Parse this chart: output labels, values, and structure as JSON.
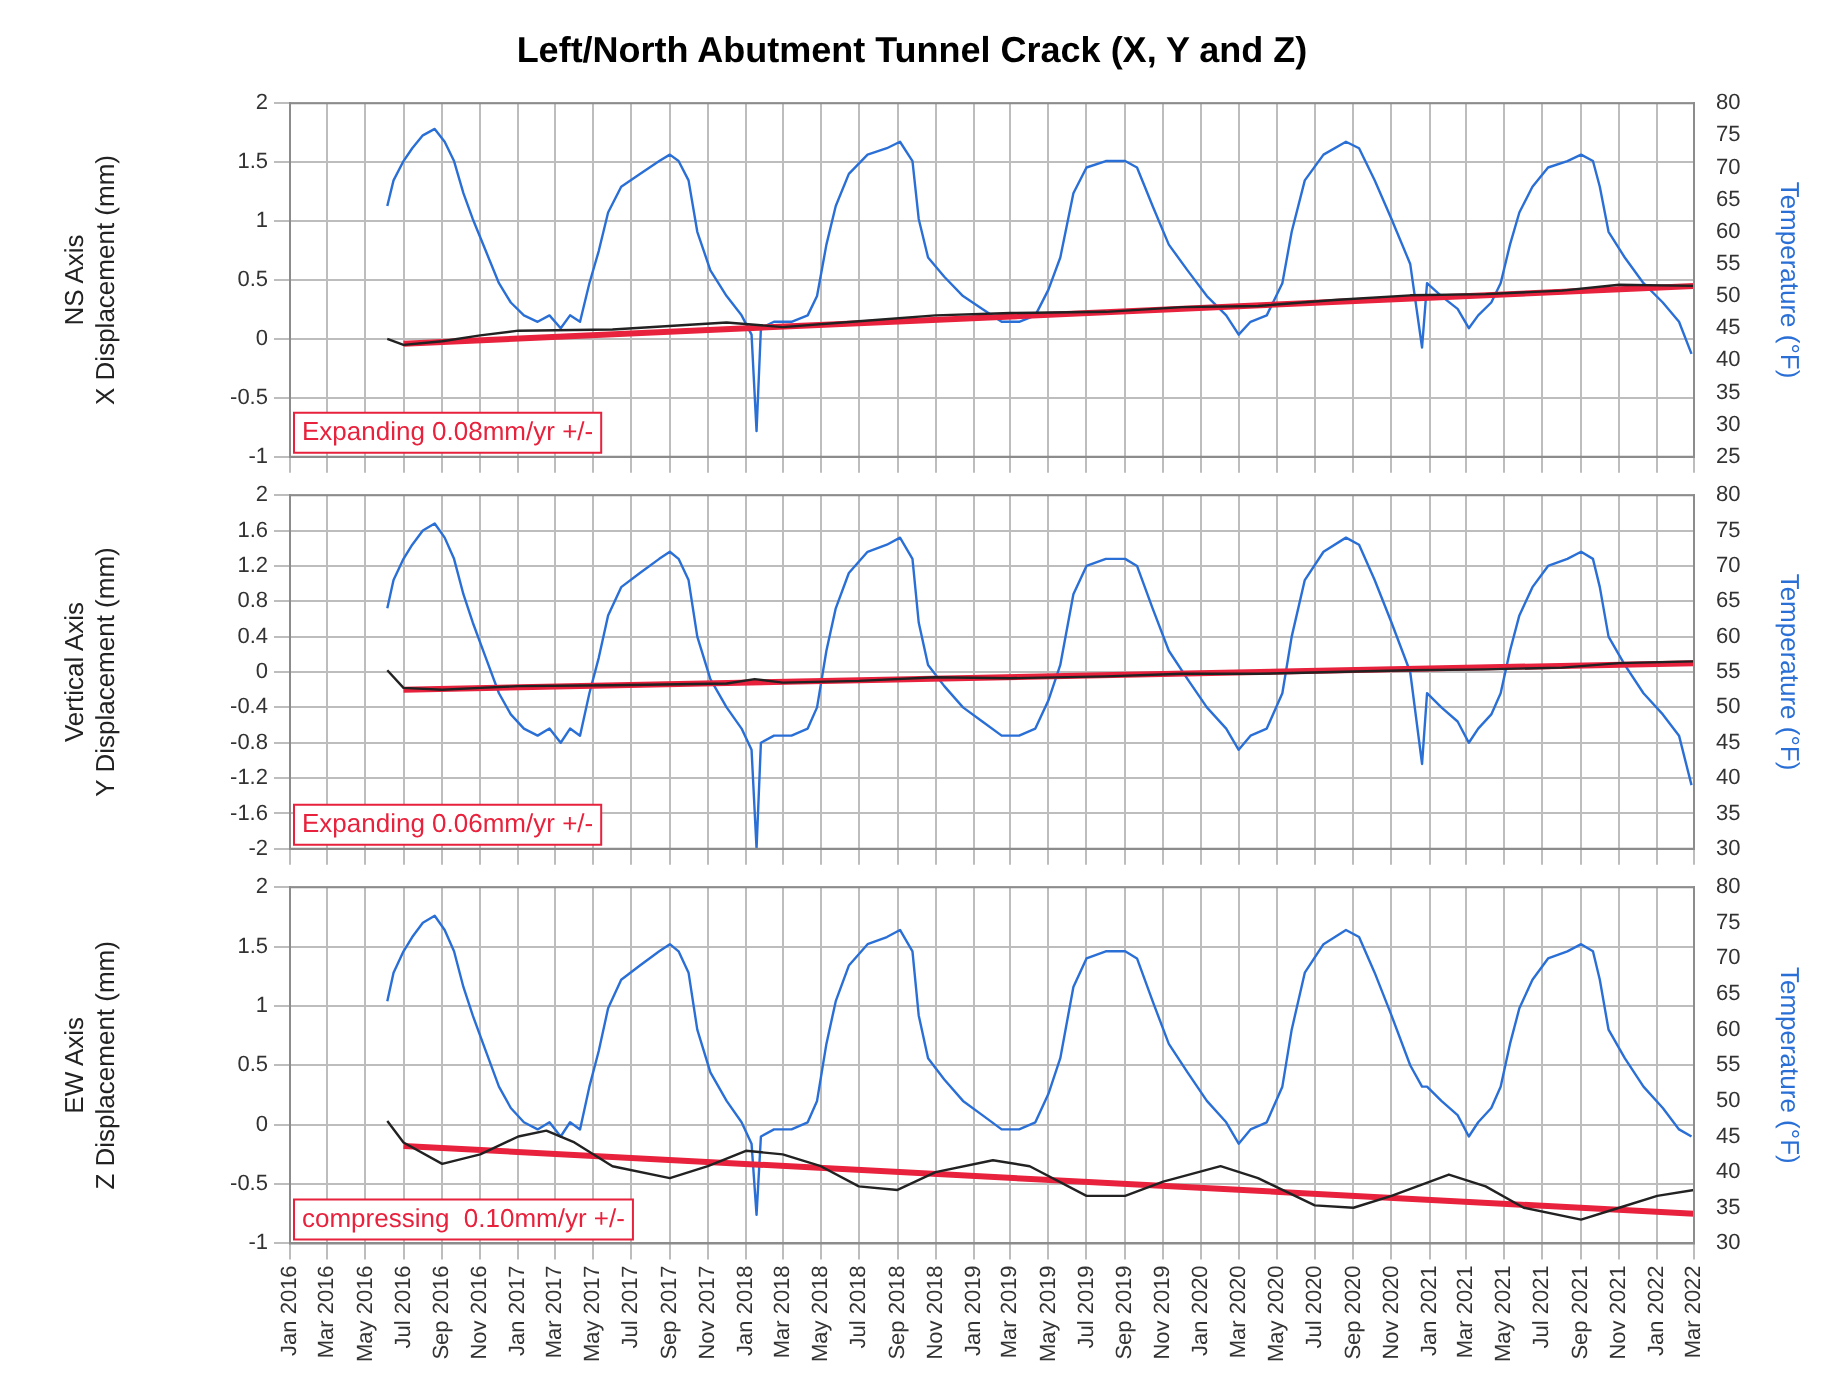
{
  "chart_data": [
    {
      "type": "line",
      "title": "Left/North Abutment Tunnel Crack (X, Y and Z)",
      "ylabel": "NS Axis\nX Displacement (mm)",
      "y2label": "Temperature (°F)",
      "tick_labels": "y",
      "grid": true,
      "legend": false,
      "xlim": [
        "2016-01",
        "2022-03"
      ],
      "xticks": [
        {
          "value": "2016-01",
          "label": null
        },
        {
          "value": "2016-03",
          "label": null
        },
        {
          "value": "2016-05",
          "label": null
        },
        {
          "value": "2016-07",
          "label": null
        },
        {
          "value": "2016-09",
          "label": null
        },
        {
          "value": "2016-11",
          "label": null
        },
        {
          "value": "2017-01",
          "label": null
        },
        {
          "value": "2017-03",
          "label": null
        },
        {
          "value": "2017-05",
          "label": null
        },
        {
          "value": "2017-07",
          "label": null
        },
        {
          "value": "2017-09",
          "label": null
        },
        {
          "value": "2017-11",
          "label": null
        },
        {
          "value": "2018-01",
          "label": null
        },
        {
          "value": "2018-03",
          "label": null
        },
        {
          "value": "2018-05",
          "label": null
        },
        {
          "value": "2018-07",
          "label": null
        },
        {
          "value": "2018-09",
          "label": null
        },
        {
          "value": "2018-11",
          "label": null
        },
        {
          "value": "2019-01",
          "label": null
        },
        {
          "value": "2019-03",
          "label": null
        },
        {
          "value": "2019-05",
          "label": null
        },
        {
          "value": "2019-07",
          "label": null
        },
        {
          "value": "2019-09",
          "label": null
        },
        {
          "value": "2019-11",
          "label": null
        },
        {
          "value": "2020-01",
          "label": null
        },
        {
          "value": "2020-03",
          "label": null
        },
        {
          "value": "2020-05",
          "label": null
        },
        {
          "value": "2020-07",
          "label": null
        },
        {
          "value": "2020-09",
          "label": null
        },
        {
          "value": "2020-11",
          "label": null
        },
        {
          "value": "2021-01",
          "label": null
        },
        {
          "value": "2021-03",
          "label": null
        },
        {
          "value": "2021-05",
          "label": null
        },
        {
          "value": "2021-07",
          "label": null
        },
        {
          "value": "2021-09",
          "label": null
        },
        {
          "value": "2021-11",
          "label": null
        },
        {
          "value": "2022-01",
          "label": null
        },
        {
          "value": "2022-03",
          "label": null
        }
      ],
      "ylim": [
        -1,
        2
      ],
      "yticks": [
        -1,
        -0.5,
        0,
        0.5,
        1,
        1.5,
        2
      ],
      "y2lim": [
        25,
        80
      ],
      "y2ticks": [
        25,
        30,
        35,
        40,
        45,
        50,
        55,
        60,
        65,
        70,
        75,
        80
      ],
      "annotations": [
        "Expanding 0.08mm/yr +/-"
      ],
      "series": [
        {
          "type": "line",
          "axis": "y2",
          "color": "#2a6fd6",
          "x": [
            "2016-06-05",
            "2016-06-15",
            "2016-07-01",
            "2016-07-15",
            "2016-08-01",
            "2016-08-20",
            "2016-09-05",
            "2016-09-20",
            "2016-10-05",
            "2016-10-20",
            "2016-11-10",
            "2016-12-01",
            "2016-12-20",
            "2017-01-10",
            "2017-02-01",
            "2017-02-20",
            "2017-03-10",
            "2017-03-25",
            "2017-04-10",
            "2017-04-25",
            "2017-05-10",
            "2017-05-25",
            "2017-06-15",
            "2017-07-15",
            "2017-08-15",
            "2017-09-01",
            "2017-09-15",
            "2017-10-01",
            "2017-10-15",
            "2017-11-05",
            "2017-12-01",
            "2017-12-25",
            "2018-01-10",
            "2018-01-18",
            "2018-01-25",
            "2018-02-15",
            "2018-03-15",
            "2018-04-10",
            "2018-04-25",
            "2018-05-10",
            "2018-05-25",
            "2018-06-15",
            "2018-07-15",
            "2018-08-15",
            "2018-09-05",
            "2018-09-25",
            "2018-10-05",
            "2018-10-20",
            "2018-11-15",
            "2018-12-15",
            "2019-01-15",
            "2019-02-15",
            "2019-03-15",
            "2019-04-10",
            "2019-05-01",
            "2019-05-20",
            "2019-06-10",
            "2019-07-01",
            "2019-08-01",
            "2019-09-01",
            "2019-09-20",
            "2019-10-15",
            "2019-11-10",
            "2019-12-10",
            "2020-01-10",
            "2020-02-10",
            "2020-03-01",
            "2020-03-20",
            "2020-04-15",
            "2020-05-10",
            "2020-05-25",
            "2020-06-15",
            "2020-07-15",
            "2020-08-20",
            "2020-09-10",
            "2020-10-05",
            "2020-11-01",
            "2020-12-01",
            "2020-12-20",
            "2020-12-28",
            "2021-01-20",
            "2021-02-15",
            "2021-03-05",
            "2021-03-20",
            "2021-04-10",
            "2021-04-25",
            "2021-05-10",
            "2021-05-25",
            "2021-06-15",
            "2021-07-10",
            "2021-08-10",
            "2021-09-01",
            "2021-09-20",
            "2021-10-01",
            "2021-10-15",
            "2021-11-10",
            "2021-12-10",
            "2022-01-10",
            "2022-02-05",
            "2022-02-25"
          ],
          "values": [
            64,
            68,
            71,
            73,
            75,
            76,
            74,
            71,
            66,
            62,
            57,
            52,
            49,
            47,
            46,
            47,
            45,
            47,
            46,
            52,
            57,
            63,
            67,
            69,
            71,
            72,
            71,
            68,
            60,
            54,
            50,
            47,
            44,
            29,
            45,
            46,
            46,
            47,
            50,
            58,
            64,
            69,
            72,
            73,
            74,
            71,
            62,
            56,
            53,
            50,
            48,
            46,
            46,
            47,
            51,
            56,
            66,
            70,
            71,
            71,
            70,
            64,
            58,
            54,
            50,
            47,
            44,
            46,
            47,
            52,
            60,
            68,
            72,
            74,
            73,
            68,
            62,
            55,
            42,
            52,
            50,
            48,
            45,
            47,
            49,
            52,
            58,
            63,
            67,
            70,
            71,
            72,
            71,
            67,
            60,
            56,
            52,
            49,
            46,
            41
          ]
        },
        {
          "type": "line",
          "color": "#222222",
          "x": [
            "2016-06-05",
            "2016-07-01",
            "2016-09-01",
            "2016-11-01",
            "2017-01-01",
            "2017-06-01",
            "2017-12-01",
            "2018-01-15",
            "2018-03-01",
            "2018-07-01",
            "2018-11-01",
            "2019-03-01",
            "2019-08-01",
            "2019-12-01",
            "2020-04-01",
            "2020-08-01",
            "2020-12-01",
            "2021-04-01",
            "2021-08-01",
            "2021-11-01",
            "2022-03-01"
          ],
          "values": [
            0,
            -0.05,
            -0.02,
            0.03,
            0.07,
            0.08,
            0.14,
            0.12,
            0.1,
            0.15,
            0.2,
            0.22,
            0.23,
            0.27,
            0.28,
            0.33,
            0.37,
            0.38,
            0.41,
            0.46,
            0.45
          ]
        },
        {
          "type": "line",
          "color": "#e8213c",
          "x": [
            "2016-07-01",
            "2022-03-01"
          ],
          "values": [
            -0.04,
            0.45
          ]
        }
      ]
    },
    {
      "type": "line",
      "ylabel": "Vertical Axis\nY Displacement (mm)",
      "y2label": "Temperature (°F)",
      "tick_labels": "y",
      "grid": true,
      "legend": false,
      "xlim": [
        "2016-01",
        "2022-03"
      ],
      "xticks": [
        {
          "value": "2016-01",
          "label": null
        },
        {
          "value": "2016-03",
          "label": null
        },
        {
          "value": "2016-05",
          "label": null
        },
        {
          "value": "2016-07",
          "label": null
        },
        {
          "value": "2016-09",
          "label": null
        },
        {
          "value": "2016-11",
          "label": null
        },
        {
          "value": "2017-01",
          "label": null
        },
        {
          "value": "2017-03",
          "label": null
        },
        {
          "value": "2017-05",
          "label": null
        },
        {
          "value": "2017-07",
          "label": null
        },
        {
          "value": "2017-09",
          "label": null
        },
        {
          "value": "2017-11",
          "label": null
        },
        {
          "value": "2018-01",
          "label": null
        },
        {
          "value": "2018-03",
          "label": null
        },
        {
          "value": "2018-05",
          "label": null
        },
        {
          "value": "2018-07",
          "label": null
        },
        {
          "value": "2018-09",
          "label": null
        },
        {
          "value": "2018-11",
          "label": null
        },
        {
          "value": "2019-01",
          "label": null
        },
        {
          "value": "2019-03",
          "label": null
        },
        {
          "value": "2019-05",
          "label": null
        },
        {
          "value": "2019-07",
          "label": null
        },
        {
          "value": "2019-09",
          "label": null
        },
        {
          "value": "2019-11",
          "label": null
        },
        {
          "value": "2020-01",
          "label": null
        },
        {
          "value": "2020-03",
          "label": null
        },
        {
          "value": "2020-05",
          "label": null
        },
        {
          "value": "2020-07",
          "label": null
        },
        {
          "value": "2020-09",
          "label": null
        },
        {
          "value": "2020-11",
          "label": null
        },
        {
          "value": "2021-01",
          "label": null
        },
        {
          "value": "2021-03",
          "label": null
        },
        {
          "value": "2021-05",
          "label": null
        },
        {
          "value": "2021-07",
          "label": null
        },
        {
          "value": "2021-09",
          "label": null
        },
        {
          "value": "2021-11",
          "label": null
        },
        {
          "value": "2022-01",
          "label": null
        },
        {
          "value": "2022-03",
          "label": null
        }
      ],
      "ylim": [
        -2,
        2
      ],
      "yticks": [
        -2,
        -1.6,
        -1.2,
        -0.8,
        -0.4,
        0,
        0.4,
        0.8,
        1.2,
        1.6,
        2
      ],
      "y2lim": [
        30,
        80
      ],
      "y2ticks": [
        30,
        35,
        40,
        45,
        50,
        55,
        60,
        65,
        70,
        75,
        80
      ],
      "annotations": [
        "Expanding 0.06mm/yr +/-"
      ],
      "series": [
        {
          "type": "line",
          "axis": "y2",
          "color": "#2a6fd6",
          "x": [
            "2016-06-05",
            "2016-06-15",
            "2016-07-01",
            "2016-07-15",
            "2016-08-01",
            "2016-08-20",
            "2016-09-05",
            "2016-09-20",
            "2016-10-05",
            "2016-10-20",
            "2016-11-10",
            "2016-12-01",
            "2016-12-20",
            "2017-01-10",
            "2017-02-01",
            "2017-02-20",
            "2017-03-10",
            "2017-03-25",
            "2017-04-10",
            "2017-04-25",
            "2017-05-10",
            "2017-05-25",
            "2017-06-15",
            "2017-07-15",
            "2017-08-15",
            "2017-09-01",
            "2017-09-15",
            "2017-10-01",
            "2017-10-15",
            "2017-11-05",
            "2017-12-01",
            "2017-12-25",
            "2018-01-10",
            "2018-01-18",
            "2018-01-25",
            "2018-02-15",
            "2018-03-15",
            "2018-04-10",
            "2018-04-25",
            "2018-05-10",
            "2018-05-25",
            "2018-06-15",
            "2018-07-15",
            "2018-08-15",
            "2018-09-05",
            "2018-09-25",
            "2018-10-05",
            "2018-10-20",
            "2018-11-15",
            "2018-12-15",
            "2019-01-15",
            "2019-02-15",
            "2019-03-15",
            "2019-04-10",
            "2019-05-01",
            "2019-05-20",
            "2019-06-10",
            "2019-07-01",
            "2019-08-01",
            "2019-09-01",
            "2019-09-20",
            "2019-10-15",
            "2019-11-10",
            "2019-12-10",
            "2020-01-10",
            "2020-02-10",
            "2020-03-01",
            "2020-03-20",
            "2020-04-15",
            "2020-05-10",
            "2020-05-25",
            "2020-06-15",
            "2020-07-15",
            "2020-08-20",
            "2020-09-10",
            "2020-10-05",
            "2020-11-01",
            "2020-12-01",
            "2020-12-20",
            "2020-12-28",
            "2021-01-20",
            "2021-02-15",
            "2021-03-05",
            "2021-03-20",
            "2021-04-10",
            "2021-04-25",
            "2021-05-10",
            "2021-05-25",
            "2021-06-15",
            "2021-07-10",
            "2021-08-10",
            "2021-09-01",
            "2021-09-20",
            "2021-10-01",
            "2021-10-15",
            "2021-11-10",
            "2021-12-10",
            "2022-01-10",
            "2022-02-05",
            "2022-02-25"
          ],
          "values": [
            64,
            68,
            71,
            73,
            75,
            76,
            74,
            71,
            66,
            62,
            57,
            52,
            49,
            47,
            46,
            47,
            45,
            47,
            46,
            52,
            57,
            63,
            67,
            69,
            71,
            72,
            71,
            68,
            60,
            54,
            50,
            47,
            44,
            30,
            45,
            46,
            46,
            47,
            50,
            58,
            64,
            69,
            72,
            73,
            74,
            71,
            62,
            56,
            53,
            50,
            48,
            46,
            46,
            47,
            51,
            56,
            66,
            70,
            71,
            71,
            70,
            64,
            58,
            54,
            50,
            47,
            44,
            46,
            47,
            52,
            60,
            68,
            72,
            74,
            73,
            68,
            62,
            55,
            42,
            52,
            50,
            48,
            45,
            47,
            49,
            52,
            58,
            63,
            67,
            70,
            71,
            72,
            71,
            67,
            60,
            56,
            52,
            49,
            46,
            39
          ]
        },
        {
          "type": "line",
          "color": "#222222",
          "x": [
            "2016-06-05",
            "2016-07-01",
            "2016-09-01",
            "2016-11-01",
            "2017-01-01",
            "2017-06-01",
            "2017-12-01",
            "2018-01-15",
            "2018-03-01",
            "2018-07-01",
            "2018-11-01",
            "2019-03-01",
            "2019-08-01",
            "2019-12-01",
            "2020-04-01",
            "2020-08-01",
            "2020-12-01",
            "2021-04-01",
            "2021-08-01",
            "2021-11-01",
            "2022-03-01"
          ],
          "values": [
            0.02,
            -0.18,
            -0.2,
            -0.18,
            -0.16,
            -0.15,
            -0.13,
            -0.08,
            -0.12,
            -0.1,
            -0.06,
            -0.07,
            -0.05,
            -0.02,
            -0.02,
            0,
            0.02,
            0.03,
            0.05,
            0.1,
            0.12
          ]
        },
        {
          "type": "line",
          "color": "#e8213c",
          "x": [
            "2016-07-01",
            "2022-03-01"
          ],
          "values": [
            -0.2,
            0.1
          ]
        }
      ]
    },
    {
      "type": "line",
      "ylabel": "EW Axis\nZ Displacement (mm)",
      "y2label": "Temperature (°F)",
      "grid": true,
      "legend": false,
      "xlim": [
        "2016-01",
        "2022-03"
      ],
      "xticks": [
        {
          "value": "2016-01",
          "label": "Jan 2016"
        },
        {
          "value": "2016-03",
          "label": "Mar 2016"
        },
        {
          "value": "2016-05",
          "label": "May 2016"
        },
        {
          "value": "2016-07",
          "label": "Jul 2016"
        },
        {
          "value": "2016-09",
          "label": "Sep 2016"
        },
        {
          "value": "2016-11",
          "label": "Nov 2016"
        },
        {
          "value": "2017-01",
          "label": "Jan 2017"
        },
        {
          "value": "2017-03",
          "label": "Mar 2017"
        },
        {
          "value": "2017-05",
          "label": "May 2017"
        },
        {
          "value": "2017-07",
          "label": "Jul 2017"
        },
        {
          "value": "2017-09",
          "label": "Sep 2017"
        },
        {
          "value": "2017-11",
          "label": "Nov 2017"
        },
        {
          "value": "2018-01",
          "label": "Jan 2018"
        },
        {
          "value": "2018-03",
          "label": "Mar 2018"
        },
        {
          "value": "2018-05",
          "label": "May 2018"
        },
        {
          "value": "2018-07",
          "label": "Jul 2018"
        },
        {
          "value": "2018-09",
          "label": "Sep 2018"
        },
        {
          "value": "2018-11",
          "label": "Nov 2018"
        },
        {
          "value": "2019-01",
          "label": "Jan 2019"
        },
        {
          "value": "2019-03",
          "label": "Mar 2019"
        },
        {
          "value": "2019-05",
          "label": "May 2019"
        },
        {
          "value": "2019-07",
          "label": "Jul 2019"
        },
        {
          "value": "2019-09",
          "label": "Sep 2019"
        },
        {
          "value": "2019-11",
          "label": "Nov 2019"
        },
        {
          "value": "2020-01",
          "label": "Jan 2020"
        },
        {
          "value": "2020-03",
          "label": "Mar 2020"
        },
        {
          "value": "2020-05",
          "label": "May 2020"
        },
        {
          "value": "2020-07",
          "label": "Jul 2020"
        },
        {
          "value": "2020-09",
          "label": "Sep 2020"
        },
        {
          "value": "2020-11",
          "label": "Nov 2020"
        },
        {
          "value": "2021-01",
          "label": "Jan 2021"
        },
        {
          "value": "2021-03",
          "label": "Mar 2021"
        },
        {
          "value": "2021-05",
          "label": "May 2021"
        },
        {
          "value": "2021-07",
          "label": "Jul 2021"
        },
        {
          "value": "2021-09",
          "label": "Sep 2021"
        },
        {
          "value": "2021-11",
          "label": "Nov 2021"
        },
        {
          "value": "2022-01",
          "label": "Jan 2022"
        },
        {
          "value": "2022-03",
          "label": "Mar 2022"
        }
      ],
      "ylim": [
        -1,
        2
      ],
      "yticks": [
        -1,
        -0.5,
        0,
        0.5,
        1,
        1.5,
        2
      ],
      "y2lim": [
        30,
        80
      ],
      "y2ticks": [
        30,
        35,
        40,
        45,
        50,
        55,
        60,
        65,
        70,
        75,
        80
      ],
      "annotations": [
        "compressing  0.10mm/yr +/-"
      ],
      "series": [
        {
          "type": "line",
          "axis": "y2",
          "color": "#2a6fd6",
          "x": [
            "2016-06-05",
            "2016-06-15",
            "2016-07-01",
            "2016-07-15",
            "2016-08-01",
            "2016-08-20",
            "2016-09-05",
            "2016-09-20",
            "2016-10-05",
            "2016-10-20",
            "2016-11-10",
            "2016-12-01",
            "2016-12-20",
            "2017-01-10",
            "2017-02-01",
            "2017-02-20",
            "2017-03-10",
            "2017-03-25",
            "2017-04-10",
            "2017-04-25",
            "2017-05-10",
            "2017-05-25",
            "2017-06-15",
            "2017-07-15",
            "2017-08-15",
            "2017-09-01",
            "2017-09-15",
            "2017-10-01",
            "2017-10-15",
            "2017-11-05",
            "2017-12-01",
            "2017-12-25",
            "2018-01-10",
            "2018-01-18",
            "2018-01-25",
            "2018-02-15",
            "2018-03-15",
            "2018-04-10",
            "2018-04-25",
            "2018-05-10",
            "2018-05-25",
            "2018-06-15",
            "2018-07-15",
            "2018-08-15",
            "2018-09-05",
            "2018-09-25",
            "2018-10-05",
            "2018-10-20",
            "2018-11-15",
            "2018-12-15",
            "2019-01-15",
            "2019-02-15",
            "2019-03-15",
            "2019-04-10",
            "2019-05-01",
            "2019-05-20",
            "2019-06-10",
            "2019-07-01",
            "2019-08-01",
            "2019-09-01",
            "2019-09-20",
            "2019-10-15",
            "2019-11-10",
            "2019-12-10",
            "2020-01-10",
            "2020-02-10",
            "2020-03-01",
            "2020-03-20",
            "2020-04-15",
            "2020-05-10",
            "2020-05-25",
            "2020-06-15",
            "2020-07-15",
            "2020-08-20",
            "2020-09-10",
            "2020-10-05",
            "2020-11-01",
            "2020-12-01",
            "2020-12-20",
            "2020-12-28",
            "2021-01-20",
            "2021-02-15",
            "2021-03-05",
            "2021-03-20",
            "2021-04-10",
            "2021-04-25",
            "2021-05-10",
            "2021-05-25",
            "2021-06-15",
            "2021-07-10",
            "2021-08-10",
            "2021-09-01",
            "2021-09-20",
            "2021-10-01",
            "2021-10-15",
            "2021-11-10",
            "2021-12-10",
            "2022-01-10",
            "2022-02-05",
            "2022-02-25"
          ],
          "values": [
            64,
            68,
            71,
            73,
            75,
            76,
            74,
            71,
            66,
            62,
            57,
            52,
            49,
            47,
            46,
            47,
            45,
            47,
            46,
            52,
            57,
            63,
            67,
            69,
            71,
            72,
            71,
            68,
            60,
            54,
            50,
            47,
            44,
            34,
            45,
            46,
            46,
            47,
            50,
            58,
            64,
            69,
            72,
            73,
            74,
            71,
            62,
            56,
            53,
            50,
            48,
            46,
            46,
            47,
            51,
            56,
            66,
            70,
            71,
            71,
            70,
            64,
            58,
            54,
            50,
            47,
            44,
            46,
            47,
            52,
            60,
            68,
            72,
            74,
            73,
            68,
            62,
            55,
            52,
            52,
            50,
            48,
            45,
            47,
            49,
            52,
            58,
            63,
            67,
            70,
            71,
            72,
            71,
            67,
            60,
            56,
            52,
            49,
            46,
            45
          ]
        },
        {
          "type": "line",
          "color": "#222222",
          "x": [
            "2016-06-05",
            "2016-07-01",
            "2016-09-01",
            "2016-11-01",
            "2017-01-01",
            "2017-02-15",
            "2017-04-01",
            "2017-06-01",
            "2017-09-01",
            "2017-11-01",
            "2018-01-01",
            "2018-03-01",
            "2018-05-01",
            "2018-07-01",
            "2018-09-01",
            "2018-11-01",
            "2019-02-01",
            "2019-04-01",
            "2019-07-01",
            "2019-09-01",
            "2019-11-01",
            "2020-02-01",
            "2020-04-01",
            "2020-07-01",
            "2020-09-01",
            "2020-11-01",
            "2021-02-01",
            "2021-04-01",
            "2021-06-01",
            "2021-09-01",
            "2021-11-01",
            "2022-01-01",
            "2022-03-01"
          ],
          "values": [
            0.03,
            -0.15,
            -0.33,
            -0.25,
            -0.1,
            -0.05,
            -0.15,
            -0.35,
            -0.45,
            -0.35,
            -0.22,
            -0.25,
            -0.35,
            -0.52,
            -0.55,
            -0.4,
            -0.3,
            -0.35,
            -0.6,
            -0.6,
            -0.48,
            -0.35,
            -0.45,
            -0.68,
            -0.7,
            -0.6,
            -0.42,
            -0.52,
            -0.7,
            -0.8,
            -0.7,
            -0.6,
            -0.55
          ]
        },
        {
          "type": "line",
          "color": "#e8213c",
          "x": [
            "2016-07-01",
            "2022-03-01"
          ],
          "values": [
            -0.18,
            -0.75
          ]
        }
      ]
    }
  ]
}
